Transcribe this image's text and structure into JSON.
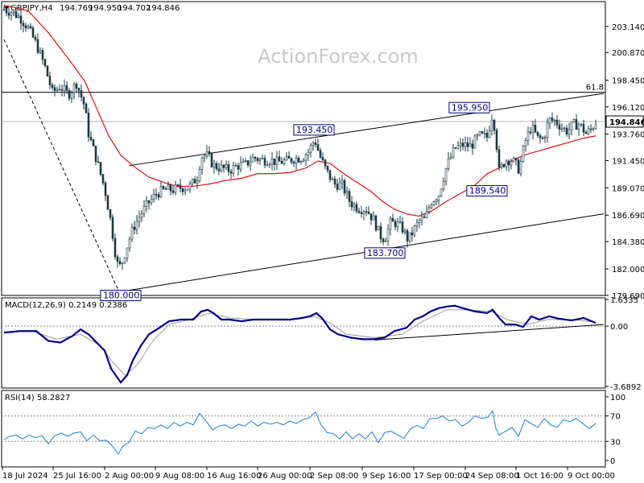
{
  "header": {
    "symbol": "GBPJPY,H4",
    "open": "194.769",
    "high": "194.950",
    "low": "194.702",
    "close": "194.846"
  },
  "watermark": "ActionForex.com",
  "colors": {
    "candle": "#1a3b47",
    "ma": "#e01010",
    "macd": "#00008b",
    "signal": "#9a9a9a",
    "rsi": "#1e7fd6",
    "label_text": "#000080",
    "grid": "#000000"
  },
  "chart_data": [
    {
      "type": "candlestick",
      "name": "price",
      "ylim": [
        179.69,
        205.3
      ],
      "price_ticks": [
        "203.140",
        "200.870",
        "198.450",
        "196.120",
        "193.760",
        "191.450",
        "189.070",
        "186.690",
        "184.380",
        "182.000",
        "179.690"
      ],
      "current_price": "194.846",
      "fib_label": "61.8",
      "fib_level": 197.4,
      "annotations": [
        {
          "label": "180.000",
          "x": 150,
          "value": 180.0
        },
        {
          "label": "193.450",
          "x": 390,
          "value": 193.45
        },
        {
          "label": "183.700",
          "x": 478,
          "value": 183.7
        },
        {
          "label": "195.950",
          "x": 612,
          "value": 195.95
        },
        {
          "label": "189.540",
          "x": 618,
          "value": 189.54
        }
      ],
      "channel_upper": [
        [
          160,
          191.0
        ],
        [
          750,
          197.3
        ]
      ],
      "channel_lower": [
        [
          148,
          180.0
        ],
        [
          750,
          186.8
        ]
      ],
      "dashed_line": [
        [
          5,
          202.0
        ],
        [
          148,
          180.0
        ]
      ],
      "close_path": [
        [
          5,
          204.6
        ],
        [
          15,
          204.4
        ],
        [
          25,
          203.9
        ],
        [
          35,
          203.0
        ],
        [
          45,
          201.6
        ],
        [
          55,
          199.8
        ],
        [
          65,
          197.4
        ],
        [
          75,
          197.9
        ],
        [
          85,
          197.2
        ],
        [
          95,
          198.2
        ],
        [
          105,
          196.2
        ],
        [
          110,
          193.8
        ],
        [
          120,
          191.5
        ],
        [
          130,
          189.0
        ],
        [
          138,
          186.0
        ],
        [
          145,
          182.5
        ],
        [
          150,
          182.2
        ],
        [
          157,
          183.8
        ],
        [
          165,
          185.5
        ],
        [
          175,
          186.8
        ],
        [
          185,
          187.8
        ],
        [
          195,
          188.6
        ],
        [
          205,
          188.9
        ],
        [
          215,
          188.9
        ],
        [
          225,
          189.1
        ],
        [
          235,
          189.1
        ],
        [
          245,
          190.0
        ],
        [
          250,
          191.8
        ],
        [
          258,
          191.9
        ],
        [
          265,
          191.0
        ],
        [
          275,
          190.8
        ],
        [
          285,
          190.6
        ],
        [
          295,
          191.0
        ],
        [
          305,
          191.1
        ],
        [
          315,
          191.7
        ],
        [
          325,
          191.5
        ],
        [
          335,
          191.5
        ],
        [
          345,
          191.3
        ],
        [
          355,
          191.4
        ],
        [
          365,
          191.6
        ],
        [
          375,
          191.7
        ],
        [
          383,
          192.2
        ],
        [
          391,
          193.3
        ],
        [
          397,
          191.9
        ],
        [
          405,
          190.6
        ],
        [
          415,
          189.4
        ],
        [
          425,
          189.3
        ],
        [
          435,
          187.8
        ],
        [
          445,
          187.3
        ],
        [
          455,
          187.2
        ],
        [
          465,
          186.2
        ],
        [
          472,
          184.9
        ],
        [
          478,
          184.6
        ],
        [
          485,
          186.0
        ],
        [
          492,
          186.0
        ],
        [
          500,
          185.5
        ],
        [
          507,
          184.5
        ],
        [
          515,
          185.5
        ],
        [
          522,
          186.3
        ],
        [
          528,
          186.3
        ],
        [
          535,
          187.8
        ],
        [
          545,
          188.5
        ],
        [
          555,
          191.0
        ],
        [
          565,
          192.5
        ],
        [
          575,
          192.8
        ],
        [
          585,
          192.7
        ],
        [
          595,
          193.6
        ],
        [
          605,
          193.5
        ],
        [
          612,
          195.6
        ],
        [
          616,
          193.5
        ],
        [
          620,
          190.5
        ],
        [
          628,
          191.5
        ],
        [
          635,
          191.5
        ],
        [
          640,
          191.2
        ],
        [
          645,
          190.6
        ],
        [
          652,
          193.0
        ],
        [
          660,
          194.4
        ],
        [
          668,
          193.4
        ],
        [
          675,
          193.3
        ],
        [
          682,
          195.0
        ],
        [
          690,
          194.9
        ],
        [
          698,
          194.3
        ],
        [
          705,
          194.0
        ],
        [
          712,
          194.6
        ],
        [
          720,
          194.6
        ],
        [
          728,
          193.8
        ],
        [
          735,
          194.2
        ],
        [
          740,
          194.85
        ]
      ],
      "ma_path": [
        [
          5,
          205.0
        ],
        [
          35,
          204.5
        ],
        [
          60,
          202.6
        ],
        [
          85,
          200.3
        ],
        [
          105,
          198.4
        ],
        [
          120,
          196.0
        ],
        [
          135,
          193.6
        ],
        [
          150,
          191.9
        ],
        [
          165,
          191.0
        ],
        [
          185,
          190.0
        ],
        [
          205,
          189.5
        ],
        [
          220,
          189.2
        ],
        [
          240,
          189.2
        ],
        [
          260,
          189.4
        ],
        [
          280,
          189.7
        ],
        [
          300,
          189.9
        ],
        [
          320,
          190.3
        ],
        [
          340,
          190.3
        ],
        [
          360,
          190.4
        ],
        [
          380,
          190.8
        ],
        [
          395,
          191.4
        ],
        [
          410,
          191.2
        ],
        [
          425,
          190.4
        ],
        [
          440,
          189.7
        ],
        [
          460,
          188.8
        ],
        [
          475,
          187.9
        ],
        [
          490,
          187.2
        ],
        [
          505,
          186.8
        ],
        [
          520,
          186.6
        ],
        [
          535,
          187.0
        ],
        [
          555,
          187.9
        ],
        [
          575,
          188.7
        ],
        [
          590,
          189.3
        ],
        [
          605,
          190.3
        ],
        [
          620,
          190.8
        ],
        [
          635,
          191.4
        ],
        [
          650,
          191.9
        ],
        [
          665,
          192.2
        ],
        [
          685,
          192.6
        ],
        [
          705,
          193.0
        ],
        [
          725,
          193.4
        ],
        [
          740,
          193.6
        ]
      ]
    },
    {
      "type": "line",
      "name": "MACD",
      "title": "MACD(12,26,9) 0.2149 0.2386",
      "ylim": [
        -3.6892,
        1.6335
      ],
      "ticks": [
        "1.6335",
        "0.00",
        "-3.6892"
      ],
      "macd_path": [
        [
          5,
          -0.4
        ],
        [
          25,
          -0.3
        ],
        [
          45,
          -0.3
        ],
        [
          60,
          -0.9
        ],
        [
          75,
          -1.0
        ],
        [
          90,
          -0.6
        ],
        [
          100,
          -0.2
        ],
        [
          110,
          -0.5
        ],
        [
          120,
          -1.0
        ],
        [
          130,
          -1.5
        ],
        [
          138,
          -2.6
        ],
        [
          145,
          -3.1
        ],
        [
          150,
          -3.45
        ],
        [
          158,
          -3.0
        ],
        [
          165,
          -2.1
        ],
        [
          175,
          -1.2
        ],
        [
          185,
          -0.5
        ],
        [
          195,
          -0.2
        ],
        [
          210,
          0.3
        ],
        [
          225,
          0.4
        ],
        [
          240,
          0.4
        ],
        [
          250,
          0.9
        ],
        [
          258,
          1.0
        ],
        [
          265,
          0.8
        ],
        [
          275,
          0.4
        ],
        [
          285,
          0.4
        ],
        [
          300,
          0.3
        ],
        [
          315,
          0.4
        ],
        [
          330,
          0.4
        ],
        [
          345,
          0.4
        ],
        [
          360,
          0.4
        ],
        [
          375,
          0.5
        ],
        [
          385,
          0.6
        ],
        [
          393,
          0.8
        ],
        [
          400,
          0.5
        ],
        [
          410,
          -0.2
        ],
        [
          420,
          -0.5
        ],
        [
          435,
          -0.7
        ],
        [
          450,
          -0.8
        ],
        [
          465,
          -0.8
        ],
        [
          478,
          -0.7
        ],
        [
          490,
          -0.3
        ],
        [
          505,
          -0.1
        ],
        [
          515,
          0.4
        ],
        [
          525,
          0.6
        ],
        [
          535,
          0.9
        ],
        [
          545,
          1.1
        ],
        [
          555,
          1.2
        ],
        [
          565,
          1.25
        ],
        [
          575,
          1.1
        ],
        [
          590,
          0.9
        ],
        [
          605,
          0.8
        ],
        [
          612,
          1.0
        ],
        [
          620,
          0.5
        ],
        [
          628,
          0.1
        ],
        [
          640,
          0.1
        ],
        [
          650,
          -0.05
        ],
        [
          660,
          0.6
        ],
        [
          670,
          0.4
        ],
        [
          682,
          0.6
        ],
        [
          695,
          0.45
        ],
        [
          710,
          0.35
        ],
        [
          725,
          0.5
        ],
        [
          740,
          0.2
        ]
      ],
      "signal_path": [
        [
          5,
          -0.35
        ],
        [
          40,
          -0.3
        ],
        [
          70,
          -0.8
        ],
        [
          100,
          -0.5
        ],
        [
          125,
          -1.2
        ],
        [
          140,
          -2.2
        ],
        [
          155,
          -3.0
        ],
        [
          170,
          -2.4
        ],
        [
          190,
          -0.9
        ],
        [
          210,
          0.1
        ],
        [
          235,
          0.4
        ],
        [
          260,
          0.8
        ],
        [
          285,
          0.5
        ],
        [
          320,
          0.4
        ],
        [
          360,
          0.4
        ],
        [
          390,
          0.6
        ],
        [
          410,
          0.2
        ],
        [
          430,
          -0.5
        ],
        [
          465,
          -0.7
        ],
        [
          500,
          -0.5
        ],
        [
          525,
          0.3
        ],
        [
          555,
          1.0
        ],
        [
          580,
          1.0
        ],
        [
          610,
          0.9
        ],
        [
          630,
          0.4
        ],
        [
          655,
          0.1
        ],
        [
          680,
          0.4
        ],
        [
          710,
          0.4
        ],
        [
          740,
          0.24
        ]
      ],
      "trendline": [
        [
          465,
          -0.85
        ],
        [
          750,
          0.1
        ]
      ]
    },
    {
      "type": "line",
      "name": "RSI",
      "title": "RSI(14) 58.2827",
      "ylim": [
        0,
        100
      ],
      "ticks": [
        "100",
        "70",
        "30",
        "0"
      ],
      "levels": [
        70,
        30
      ],
      "rsi_path": [
        [
          5,
          33
        ],
        [
          12,
          38
        ],
        [
          20,
          40
        ],
        [
          28,
          34
        ],
        [
          36,
          40
        ],
        [
          44,
          36
        ],
        [
          52,
          39
        ],
        [
          60,
          26
        ],
        [
          68,
          39
        ],
        [
          76,
          43
        ],
        [
          84,
          38
        ],
        [
          92,
          43
        ],
        [
          100,
          45
        ],
        [
          108,
          31
        ],
        [
          116,
          40
        ],
        [
          124,
          31
        ],
        [
          132,
          32
        ],
        [
          140,
          22
        ],
        [
          147,
          10
        ],
        [
          152,
          22
        ],
        [
          160,
          28
        ],
        [
          168,
          46
        ],
        [
          176,
          42
        ],
        [
          184,
          52
        ],
        [
          192,
          50
        ],
        [
          200,
          56
        ],
        [
          208,
          50
        ],
        [
          216,
          60
        ],
        [
          224,
          54
        ],
        [
          232,
          60
        ],
        [
          240,
          56
        ],
        [
          248,
          74
        ],
        [
          256,
          62
        ],
        [
          264,
          48
        ],
        [
          272,
          54
        ],
        [
          280,
          56
        ],
        [
          288,
          50
        ],
        [
          296,
          57
        ],
        [
          304,
          54
        ],
        [
          312,
          62
        ],
        [
          320,
          54
        ],
        [
          328,
          60
        ],
        [
          336,
          57
        ],
        [
          344,
          60
        ],
        [
          352,
          56
        ],
        [
          360,
          62
        ],
        [
          368,
          58
        ],
        [
          376,
          64
        ],
        [
          384,
          67
        ],
        [
          392,
          76
        ],
        [
          398,
          58
        ],
        [
          406,
          44
        ],
        [
          414,
          42
        ],
        [
          422,
          34
        ],
        [
          430,
          45
        ],
        [
          438,
          34
        ],
        [
          446,
          42
        ],
        [
          454,
          34
        ],
        [
          462,
          45
        ],
        [
          470,
          28
        ],
        [
          478,
          44
        ],
        [
          486,
          46
        ],
        [
          494,
          40
        ],
        [
          502,
          35
        ],
        [
          510,
          50
        ],
        [
          518,
          55
        ],
        [
          526,
          50
        ],
        [
          534,
          66
        ],
        [
          542,
          66
        ],
        [
          550,
          70
        ],
        [
          558,
          62
        ],
        [
          566,
          64
        ],
        [
          574,
          54
        ],
        [
          582,
          60
        ],
        [
          590,
          70
        ],
        [
          598,
          66
        ],
        [
          606,
          68
        ],
        [
          612,
          78
        ],
        [
          616,
          50
        ],
        [
          620,
          40
        ],
        [
          628,
          46
        ],
        [
          636,
          52
        ],
        [
          644,
          38
        ],
        [
          652,
          64
        ],
        [
          660,
          58
        ],
        [
          668,
          52
        ],
        [
          676,
          66
        ],
        [
          684,
          56
        ],
        [
          692,
          52
        ],
        [
          700,
          64
        ],
        [
          708,
          61
        ],
        [
          716,
          66
        ],
        [
          724,
          58
        ],
        [
          732,
          50
        ],
        [
          740,
          58
        ]
      ]
    }
  ],
  "x_axis": {
    "ticks": [
      {
        "label": "18 Jul 2024",
        "x": 3
      },
      {
        "label": "25 Jul 16:00",
        "x": 66
      },
      {
        "label": "2 Aug 00:00",
        "x": 130
      },
      {
        "label": "9 Aug 08:00",
        "x": 193
      },
      {
        "label": "16 Aug 16:00",
        "x": 257
      },
      {
        "label": "26 Aug 00:00",
        "x": 320
      },
      {
        "label": "2 Sep 08:00",
        "x": 385
      },
      {
        "label": "9 Sep 16:00",
        "x": 450
      },
      {
        "label": "17 Sep 00:00",
        "x": 514
      },
      {
        "label": "24 Sep 08:00",
        "x": 578
      },
      {
        "label": "1 Oct 16:00",
        "x": 641
      },
      {
        "label": "9 Oct 00:00",
        "x": 705
      }
    ]
  }
}
